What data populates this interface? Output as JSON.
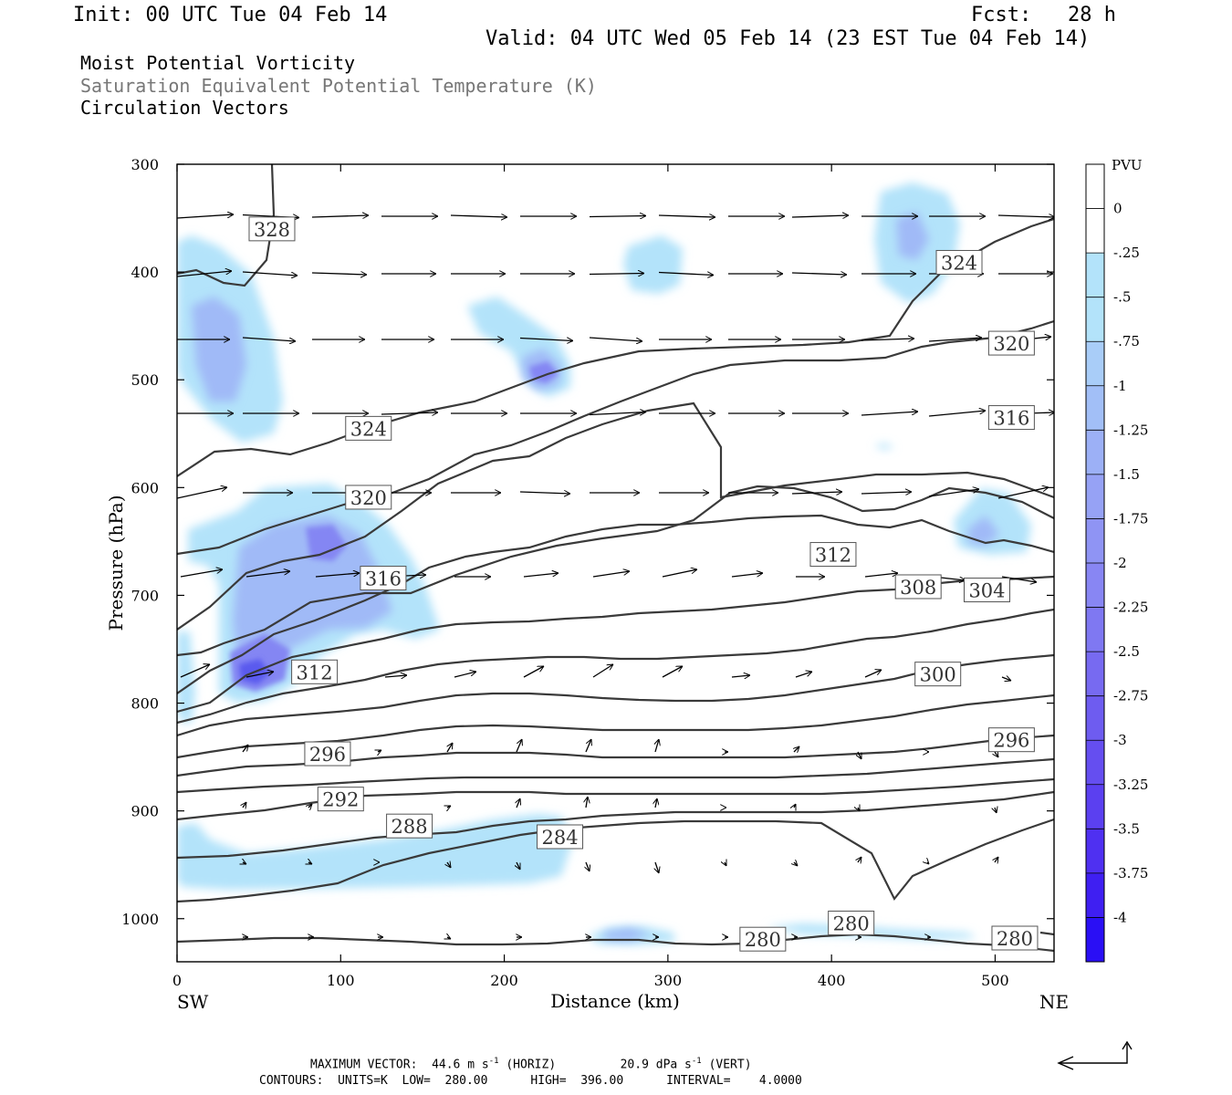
{
  "header": {
    "init": "Init: 00 UTC Tue 04 Feb 14",
    "fcst": "Fcst:   28 h",
    "valid": "Valid: 04 UTC Wed 05 Feb 14 (23 EST Tue 04 Feb 14)"
  },
  "titles": {
    "line1": "Moist Potential Vorticity",
    "line2": "Saturation Equivalent Potential Temperature (K)",
    "line3": "Circulation Vectors"
  },
  "colors": {
    "axis": "#000000",
    "contour": "#3a3a3a",
    "shade_light": "#b3e3fa",
    "shade_mid": "#9fb8f7",
    "shade_dark": "#7e7ff2",
    "shade_darkest": "#5a5aee"
  },
  "chart_data": {
    "type": "cross-section",
    "xlabel": "Distance (km)",
    "ylabel": "Pressure (hPa)",
    "xlim": [
      0,
      536
    ],
    "ylim": [
      1040,
      300
    ],
    "x_ticks": [
      "0",
      "100",
      "200",
      "300",
      "400",
      "500"
    ],
    "x_tick_values": [
      0,
      100,
      200,
      300,
      400,
      500
    ],
    "y_ticks": [
      "300",
      "400",
      "500",
      "600",
      "700",
      "800",
      "900",
      "1000"
    ],
    "y_tick_values": [
      300,
      400,
      500,
      600,
      700,
      800,
      900,
      1000
    ],
    "left_end_label": "SW",
    "right_end_label": "NE",
    "colorbar": {
      "unit": "PVU",
      "labels": [
        "0",
        "-.25",
        "-.5",
        "-.75",
        "-1",
        "-1.25",
        "-1.5",
        "-1.75",
        "-2",
        "-2.25",
        "-2.5",
        "-2.75",
        "-3",
        "-3.25",
        "-3.5",
        "-3.75",
        "-4"
      ],
      "colors": [
        "#ffffff",
        "#ffffff",
        "#b3e3fa",
        "#b3e3fa",
        "#a9cdf8",
        "#a2bff7",
        "#9cb0f6",
        "#96a2f5",
        "#8f94f4",
        "#8886f3",
        "#7f78f2",
        "#776af1",
        "#6e5cf0",
        "#654ef0",
        "#5b40f0",
        "#4f30f1",
        "#3f1ff2",
        "#2a0ff5"
      ]
    },
    "contour_labels": [
      {
        "value": "328",
        "x": 58,
        "p": 360
      },
      {
        "value": "324",
        "x": 117,
        "p": 545
      },
      {
        "value": "324",
        "x": 478,
        "p": 391
      },
      {
        "value": "320",
        "x": 117,
        "p": 609
      },
      {
        "value": "320",
        "x": 510,
        "p": 466
      },
      {
        "value": "316",
        "x": 126,
        "p": 684
      },
      {
        "value": "316",
        "x": 510,
        "p": 535
      },
      {
        "value": "312",
        "x": 84,
        "p": 771
      },
      {
        "value": "312",
        "x": 401,
        "p": 662
      },
      {
        "value": "308",
        "x": 453,
        "p": 692
      },
      {
        "value": "304",
        "x": 495,
        "p": 695
      },
      {
        "value": "300",
        "x": 465,
        "p": 773
      },
      {
        "value": "296",
        "x": 92,
        "p": 847
      },
      {
        "value": "296",
        "x": 510,
        "p": 834
      },
      {
        "value": "292",
        "x": 100,
        "p": 889
      },
      {
        "value": "288",
        "x": 142,
        "p": 914
      },
      {
        "value": "284",
        "x": 234,
        "p": 924
      },
      {
        "value": "280",
        "x": 358,
        "p": 1019
      },
      {
        "value": "280",
        "x": 412,
        "p": 1004
      },
      {
        "value": "280",
        "x": 512,
        "p": 1018
      }
    ]
  },
  "footer": {
    "max_vector_label": "MAXIMUM VECTOR:",
    "horiz_value": "44.6",
    "horiz_unit": "m s",
    "horiz_tag": "(HORIZ)",
    "vert_value": "20.9",
    "vert_unit": "dPa s",
    "vert_tag": "(VERT)",
    "exponent": "-1",
    "contours": "CONTOURS:  UNITS=K  LOW=  280.00      HIGH=  396.00      INTERVAL=    4.0000"
  }
}
